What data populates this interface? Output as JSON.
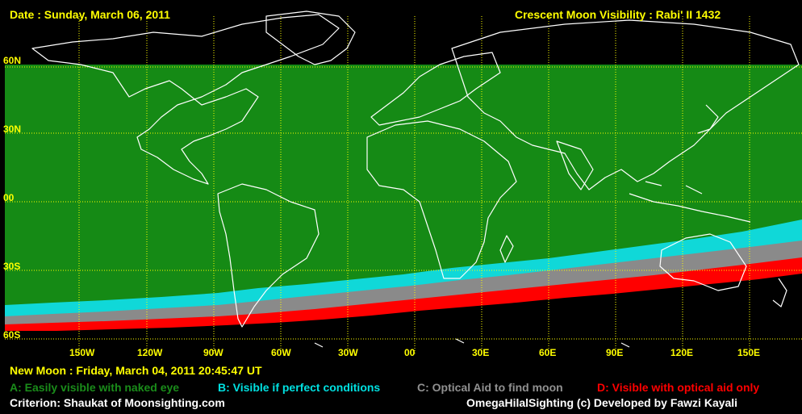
{
  "header": {
    "date": "Date : Sunday, March 06, 2011",
    "title": "Crescent Moon Visibility : Rabi' II  1432"
  },
  "axes": {
    "lat_labels": [
      "60N",
      "30N",
      "00",
      "30S",
      "60S"
    ],
    "lon_labels": [
      "150W",
      "120W",
      "90W",
      "60W",
      "30W",
      "00",
      "30E",
      "60E",
      "90E",
      "120E",
      "150E"
    ]
  },
  "footer": {
    "new_moon": "New Moon : Friday, March 04, 2011  20:45:47  UT",
    "criterion": "Criterion: Shaukat of Moonsighting.com",
    "credit": "OmegaHilalSighting  (c)  Developed by Fawzi Kayali"
  },
  "legend": [
    {
      "label": "A: Easily visible with naked eye",
      "color": "#1a8c1a"
    },
    {
      "label": "B: Visible if perfect conditions",
      "color": "#00e0e0"
    },
    {
      "label": "C: Optical Aid to find moon",
      "color": "#909090"
    },
    {
      "label": "D: Visible with optical aid only",
      "color": "#ff0000"
    }
  ],
  "colors": {
    "zone_a": "#158a15",
    "zone_b": "#10d8d8",
    "zone_c": "#8a8a8a",
    "zone_d": "#ff0000",
    "grid": "#ffff00",
    "coast": "#ffffff",
    "text": "#ffff00"
  }
}
